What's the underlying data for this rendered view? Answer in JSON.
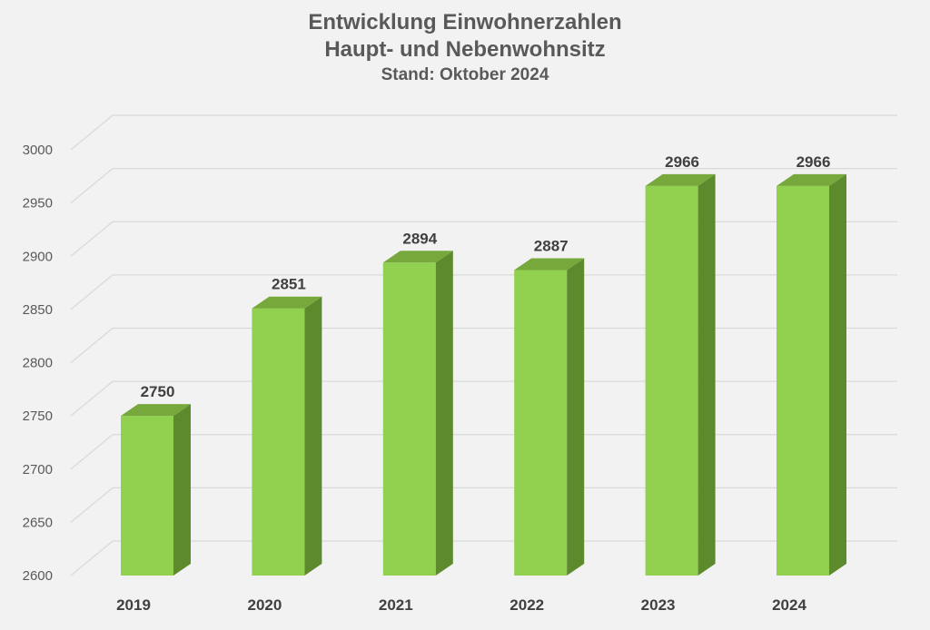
{
  "chart_data": {
    "type": "bar",
    "title": "Entwicklung Einwohnerzahlen",
    "subtitle": "Haupt- und Nebenwohnsitz",
    "subtitle2": "Stand: Oktober 2024",
    "categories": [
      "2019",
      "2020",
      "2021",
      "2022",
      "2023",
      "2024"
    ],
    "values": [
      2750,
      2851,
      2894,
      2887,
      2966,
      2966
    ],
    "data_labels": [
      "2750",
      "2851",
      "2894",
      "2887",
      "2966",
      "2966"
    ],
    "y_ticks": [
      "2600",
      "2650",
      "2700",
      "2750",
      "2800",
      "2850",
      "2900",
      "2950",
      "3000"
    ],
    "ylim": [
      2600,
      3000
    ],
    "xlabel": "",
    "ylabel": "",
    "grid": true,
    "legend": "none",
    "three_d": true
  },
  "colors": {
    "background": "#f2f2f2",
    "bar_front": "#92d050",
    "bar_side": "#5e8a2e",
    "bar_top": "#76a83c",
    "grid": "#d9d9d9",
    "title": "#595959"
  }
}
